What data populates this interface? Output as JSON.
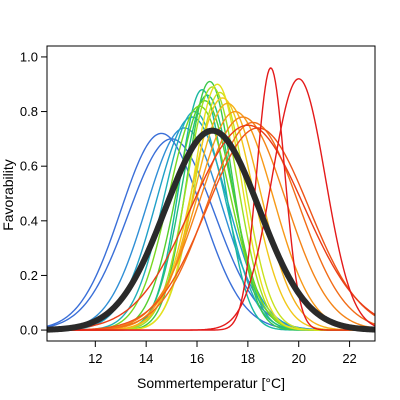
{
  "chart_data": {
    "type": "line",
    "title": "",
    "xlabel": "Sommertemperatur [°C]",
    "ylabel": "Favorability",
    "xlim": [
      10.1,
      23.0
    ],
    "ylim": [
      -0.04,
      1.04
    ],
    "x_ticks": [
      12,
      14,
      16,
      18,
      20,
      22
    ],
    "y_ticks": [
      0.0,
      0.2,
      0.4,
      0.6,
      0.8,
      1.0
    ],
    "x_tick_labels": [
      "12",
      "14",
      "16",
      "18",
      "20",
      "22"
    ],
    "y_tick_labels": [
      "0.0",
      "0.2",
      "0.4",
      "0.6",
      "0.8",
      "1.0"
    ],
    "grid": false,
    "legend": "none",
    "series_style": "gaussian favorability curves (peak, center, width, color)",
    "series": [
      {
        "peak": 0.72,
        "center": 14.6,
        "width": 1.6,
        "color": "#3a6fd8"
      },
      {
        "peak": 0.7,
        "center": 15.0,
        "width": 1.7,
        "color": "#3a6fd8"
      },
      {
        "peak": 0.74,
        "center": 15.5,
        "width": 1.5,
        "color": "#2f8fd6"
      },
      {
        "peak": 0.78,
        "center": 15.8,
        "width": 1.4,
        "color": "#1fa0c8"
      },
      {
        "peak": 0.8,
        "center": 15.9,
        "width": 1.2,
        "color": "#1fb0b8"
      },
      {
        "peak": 0.88,
        "center": 16.2,
        "width": 0.9,
        "color": "#18b8a0"
      },
      {
        "peak": 0.86,
        "center": 16.4,
        "width": 1.0,
        "color": "#22c07a"
      },
      {
        "peak": 0.91,
        "center": 16.5,
        "width": 0.9,
        "color": "#3cc84a"
      },
      {
        "peak": 0.84,
        "center": 16.3,
        "width": 1.1,
        "color": "#55cf2c"
      },
      {
        "peak": 0.82,
        "center": 16.1,
        "width": 1.2,
        "color": "#78d820"
      },
      {
        "peak": 0.89,
        "center": 16.6,
        "width": 1.0,
        "color": "#9fe020"
      },
      {
        "peak": 0.87,
        "center": 16.9,
        "width": 1.0,
        "color": "#c8e21e"
      },
      {
        "peak": 0.9,
        "center": 16.8,
        "width": 0.95,
        "color": "#e6e01c"
      },
      {
        "peak": 0.85,
        "center": 17.0,
        "width": 1.2,
        "color": "#f2c81a"
      },
      {
        "peak": 0.83,
        "center": 17.2,
        "width": 1.3,
        "color": "#f5b018"
      },
      {
        "peak": 0.8,
        "center": 17.5,
        "width": 1.5,
        "color": "#f79a18"
      },
      {
        "peak": 0.78,
        "center": 17.8,
        "width": 1.7,
        "color": "#f48418"
      },
      {
        "peak": 0.76,
        "center": 18.2,
        "width": 1.8,
        "color": "#f26c18"
      },
      {
        "peak": 0.74,
        "center": 18.4,
        "width": 2.0,
        "color": "#ee5418"
      },
      {
        "peak": 0.75,
        "center": 18.0,
        "width": 2.2,
        "color": "#ea3e18"
      },
      {
        "peak": 0.96,
        "center": 18.9,
        "width": 0.55,
        "color": "#e41a1a"
      },
      {
        "peak": 0.92,
        "center": 20.0,
        "width": 1.05,
        "color": "#e41a1a"
      },
      {
        "peak": 0.73,
        "center": 16.6,
        "width": 1.85,
        "color": "#2a2a2a",
        "bold": true
      }
    ]
  }
}
